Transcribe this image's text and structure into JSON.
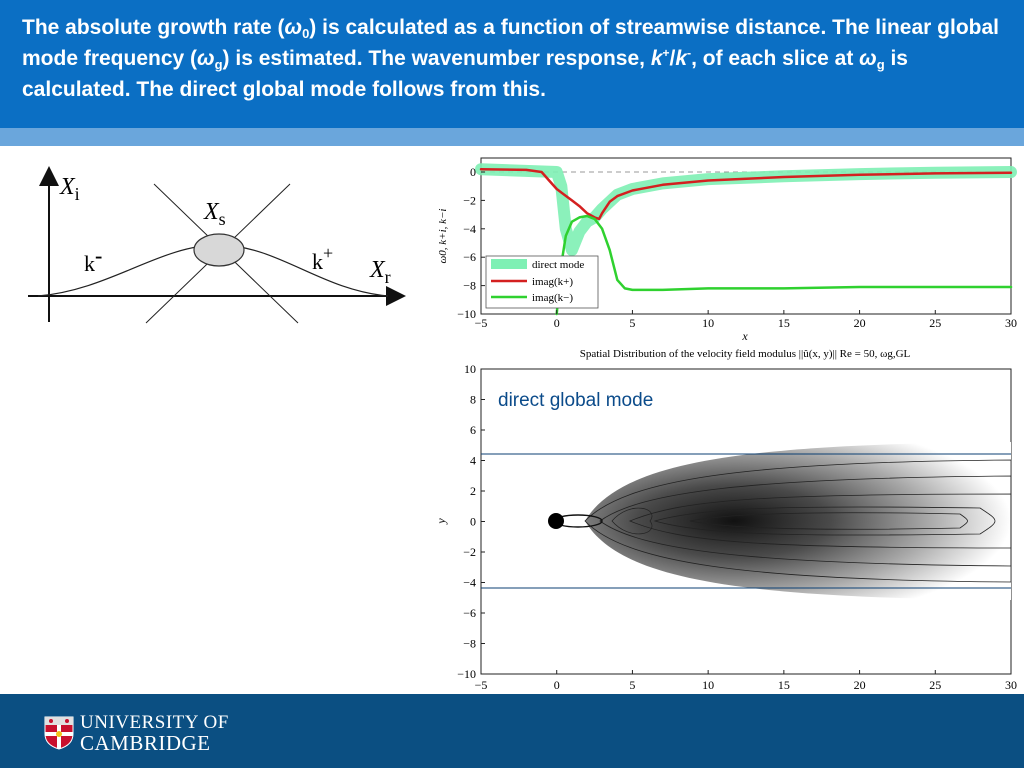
{
  "slide": {
    "title_parts": {
      "p1": "The absolute growth rate (",
      "omega": "ω",
      "sub0": "0",
      "p2": ") is calculated as a function of streamwise distance. The linear global mode frequency (",
      "omega2": "ω",
      "subg": "g",
      "p3": ") is estimated. The wavenumber response, ",
      "k1": "k",
      "plus": "+",
      "slash": "/",
      "k2": "k",
      "minus": "-",
      "p4": ", of each slice at ",
      "omega3": "ω",
      "subg2": "g",
      "p5": " is calculated. The direct global mode follows from this."
    }
  },
  "sketch": {
    "xi_label": "X",
    "xi_sub": "i",
    "xr_label": "X",
    "xr_sub": "r",
    "xs_label": "X",
    "xs_sub": "s",
    "kminus_label": "k",
    "kminus_sup": "-",
    "kplus_label": "k",
    "kplus_sup": "+"
  },
  "chart_data": [
    {
      "type": "line",
      "xlabel": "x",
      "ylabel": "ω0, k+i, k−i",
      "xlim": [
        -5,
        30
      ],
      "ylim": [
        -10,
        1
      ],
      "x_ticks": [
        "−5",
        "0",
        "5",
        "10",
        "15",
        "20",
        "25",
        "30"
      ],
      "y_ticks": [
        "0",
        "−2",
        "−4",
        "−6",
        "−8",
        "−10"
      ],
      "legend_position": "bottom-left",
      "series": [
        {
          "name": "direct mode",
          "color": "#7ef0b4",
          "x": [
            -5,
            0,
            0.3,
            0.6,
            1,
            1.5,
            2,
            2.5,
            3,
            4,
            5,
            7,
            10,
            15,
            20,
            25,
            30
          ],
          "y": [
            0.2,
            0,
            -1,
            -4,
            -5.5,
            -4.2,
            -3.5,
            -3.2,
            -2.6,
            -1.6,
            -1.2,
            -0.8,
            -0.5,
            -0.3,
            -0.15,
            -0.05,
            0
          ]
        },
        {
          "name": "imag(k+)",
          "color": "#d42020",
          "x": [
            -5,
            -2,
            -1,
            -0.5,
            0,
            0.5,
            1,
            1.5,
            2,
            2.5,
            2.8,
            3,
            3.5,
            4,
            5,
            7,
            10,
            15,
            20,
            25,
            30
          ],
          "y": [
            0.2,
            0.15,
            0,
            -0.6,
            -1.2,
            -1.6,
            -2.0,
            -2.4,
            -2.9,
            -3.2,
            -3.3,
            -2.9,
            -2.1,
            -1.7,
            -1.3,
            -0.9,
            -0.6,
            -0.35,
            -0.2,
            -0.1,
            -0.05
          ]
        },
        {
          "name": "imag(k−)",
          "color": "#2fd12f",
          "x": [
            0,
            0.3,
            0.6,
            1,
            1.5,
            2,
            2.5,
            3,
            3.5,
            4,
            4.5,
            5,
            7,
            10,
            15,
            20,
            25,
            30
          ],
          "y": [
            -10,
            -6.5,
            -4.5,
            -3.5,
            -3.2,
            -3.1,
            -3.3,
            -4.0,
            -5.5,
            -7.6,
            -8.2,
            -8.3,
            -8.3,
            -8.2,
            -8.2,
            -8.1,
            -8.1,
            -8.1
          ]
        }
      ]
    },
    {
      "type": "heatmap",
      "title": "Spatial Distribution of the velocity field modulus ||û(x, y)|| Re = 50, ωg,GL",
      "xlabel": "",
      "ylabel": "y",
      "xlim": [
        -5,
        30
      ],
      "ylim": [
        -10,
        10
      ],
      "x_ticks": [
        "−5",
        "0",
        "5",
        "10",
        "15",
        "20",
        "25",
        "30"
      ],
      "y_ticks": [
        "10",
        "8",
        "6",
        "4",
        "2",
        "0",
        "−2",
        "−4",
        "−6",
        "−8",
        "−10"
      ],
      "annotation": "direct global mode",
      "grid": false
    }
  ],
  "footer": {
    "line1": "UNIVERSITY OF",
    "line2": "CAMBRIDGE"
  },
  "colors": {
    "header_blue": "#0b6fc4",
    "footer_navy": "#0b4f82",
    "direct_mode": "#7ef0b4",
    "imag_kplus": "#d42020",
    "imag_kminus": "#2fd12f"
  }
}
